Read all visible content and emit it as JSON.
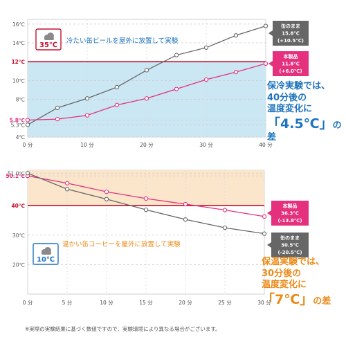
{
  "chart_data": [
    {
      "type": "line",
      "title": "冷たい缶ビールを屋外に放置して実験",
      "ambient_badge": "35℃",
      "weather_icon": "cloud-icon",
      "x": [
        0,
        5,
        10,
        15,
        20,
        25,
        30,
        35,
        40
      ],
      "x_ticks": [
        "0 分",
        "10 分",
        "20 分",
        "30 分",
        "40 分"
      ],
      "xlim": [
        0,
        40
      ],
      "ylim": [
        4,
        16.5
      ],
      "y_ticks": [
        "4℃",
        "5.3℃",
        "5.8℃",
        "8℃",
        "10℃",
        "12℃",
        "14℃",
        "16℃"
      ],
      "highlight_band": [
        4,
        12
      ],
      "band_color": "#cbe7f3",
      "reference_line": 12,
      "series": [
        {
          "name": "缶のまま",
          "color": "#666666",
          "values": [
            5.3,
            7.1,
            8.1,
            9.3,
            11.1,
            12.7,
            13.5,
            14.8,
            15.8
          ],
          "end_label": [
            "缶のまま",
            "15.8℃",
            "(+10.5℃)"
          ]
        },
        {
          "name": "本製品",
          "color": "#e4307d",
          "values": [
            5.8,
            5.9,
            6.3,
            7.4,
            8.1,
            9.1,
            10.1,
            10.9,
            11.8
          ],
          "end_label": [
            "本製品",
            "11.8℃",
            "(+6.0℃)"
          ]
        }
      ]
    },
    {
      "type": "line",
      "title": "温かい缶コーヒーを屋外に放置して実験",
      "ambient_badge": "10℃",
      "weather_icon": "cloud-icon",
      "x": [
        0,
        5,
        10,
        15,
        20,
        25,
        30
      ],
      "x_ticks": [
        "0 分",
        "5 分",
        "10 分",
        "15 分",
        "20 分",
        "25 分",
        "30 分"
      ],
      "xlim": [
        0,
        30
      ],
      "ylim": [
        10,
        52
      ],
      "y_ticks": [
        "20℃",
        "30℃",
        "40℃",
        "50.1℃",
        "51.0℃"
      ],
      "highlight_band": [
        40,
        52
      ],
      "band_color": "#fbe6cc",
      "reference_line": 40,
      "series": [
        {
          "name": "本製品",
          "color": "#e4307d",
          "values": [
            50.1,
            47.6,
            44.7,
            42.4,
            40.5,
            38.5,
            36.3
          ],
          "end_label": [
            "本製品",
            "36.3℃",
            "(-13.8℃)"
          ]
        },
        {
          "name": "缶のまま",
          "color": "#666666",
          "values": [
            51.0,
            45.6,
            42.2,
            38.6,
            35.3,
            32.5,
            30.5
          ],
          "end_label": [
            "缶のまま",
            "30.5℃",
            "(-20.5℃)"
          ]
        }
      ]
    }
  ],
  "callouts": {
    "cold": {
      "line1": "保冷実験では、",
      "line2": "40分後の",
      "line3": "温度変化に",
      "big": "「4.5℃」",
      "tail": "の差"
    },
    "warm": {
      "line1": "保温実験では、",
      "line2": "30分後の",
      "line3": "温度変化に",
      "big": "「7℃」",
      "tail": "の差"
    }
  },
  "footnote": "※実際の実験結果に基づく数値ですので、実験環境により異なる場合がございます。"
}
